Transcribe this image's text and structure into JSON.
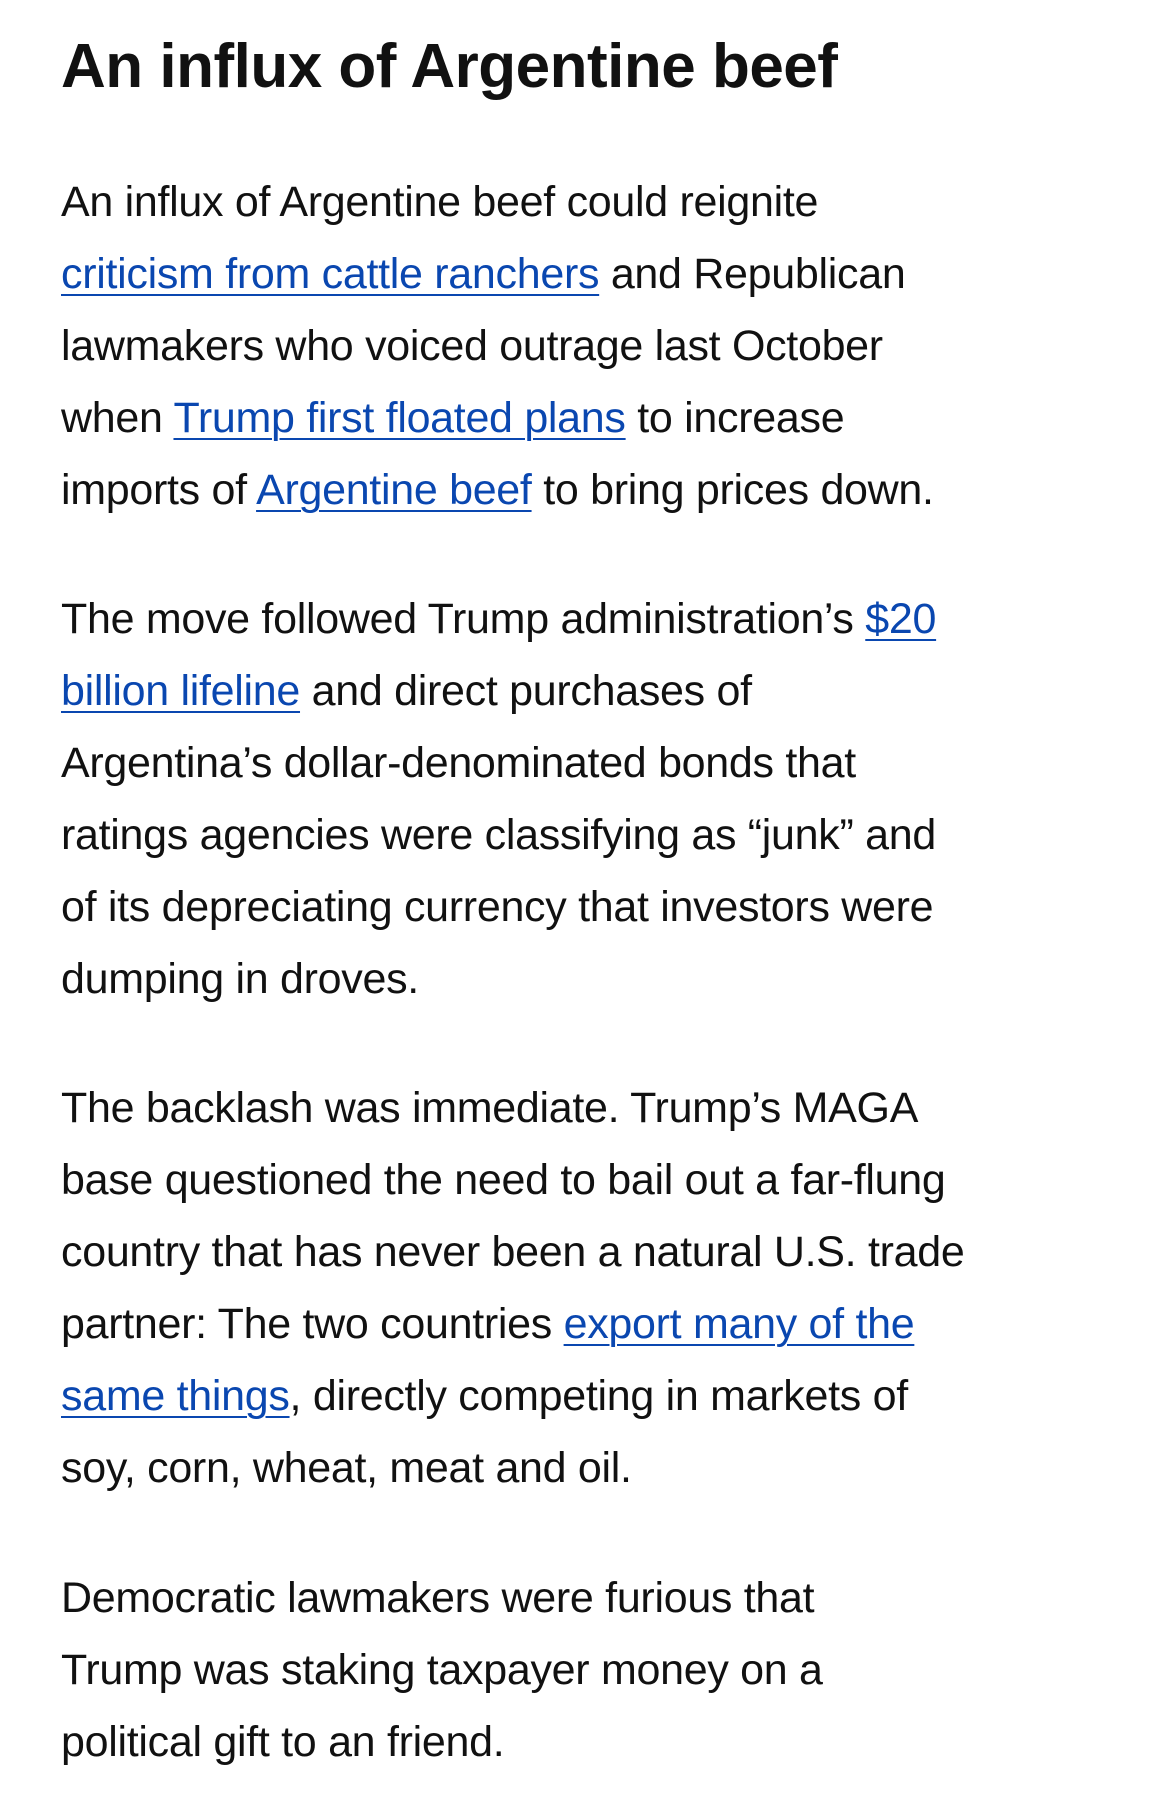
{
  "heading": "An influx of Argentine beef",
  "link_color": "#0a47b0",
  "paragraphs": [
    [
      [
        {
          "text": "An influx of Argentine beef could reignite"
        }
      ],
      [
        {
          "text": "criticism from cattle ranchers",
          "link": true
        },
        {
          "text": " and Republican"
        }
      ],
      [
        {
          "text": "lawmakers who voiced outrage last October"
        }
      ],
      [
        {
          "text": "when "
        },
        {
          "text": "Trump first floated plans",
          "link": true
        },
        {
          "text": " to increase"
        }
      ],
      [
        {
          "text": "imports of "
        },
        {
          "text": "Argentine beef",
          "link": true
        },
        {
          "text": " to bring prices down."
        }
      ]
    ],
    [
      [
        {
          "text": "The move followed Trump administration’s "
        },
        {
          "text": "$20",
          "link": true
        }
      ],
      [
        {
          "text": "billion lifeline",
          "link": true
        },
        {
          "text": " and direct purchases of"
        }
      ],
      [
        {
          "text": "Argentina’s dollar-denominated bonds that"
        }
      ],
      [
        {
          "text": "ratings agencies were classifying as “junk” and"
        }
      ],
      [
        {
          "text": "of its depreciating currency that investors were"
        }
      ],
      [
        {
          "text": "dumping in droves."
        }
      ]
    ],
    [
      [
        {
          "text": "The backlash was immediate. Trump’s MAGA"
        }
      ],
      [
        {
          "text": "base questioned the need to bail out a far-flung"
        }
      ],
      [
        {
          "text": "country that has never been a natural U.S. trade"
        }
      ],
      [
        {
          "text": "partner: The two countries "
        },
        {
          "text": "export many of the",
          "link": true
        }
      ],
      [
        {
          "text": "same things",
          "link": true
        },
        {
          "text": ", directly competing in markets of"
        }
      ],
      [
        {
          "text": "soy, corn, wheat, meat and oil."
        }
      ]
    ],
    [
      [
        {
          "text": "Democratic lawmakers were furious that"
        }
      ],
      [
        {
          "text": "Trump was staking taxpayer money on a"
        }
      ],
      [
        {
          "text": "political gift to an friend."
        }
      ]
    ]
  ]
}
